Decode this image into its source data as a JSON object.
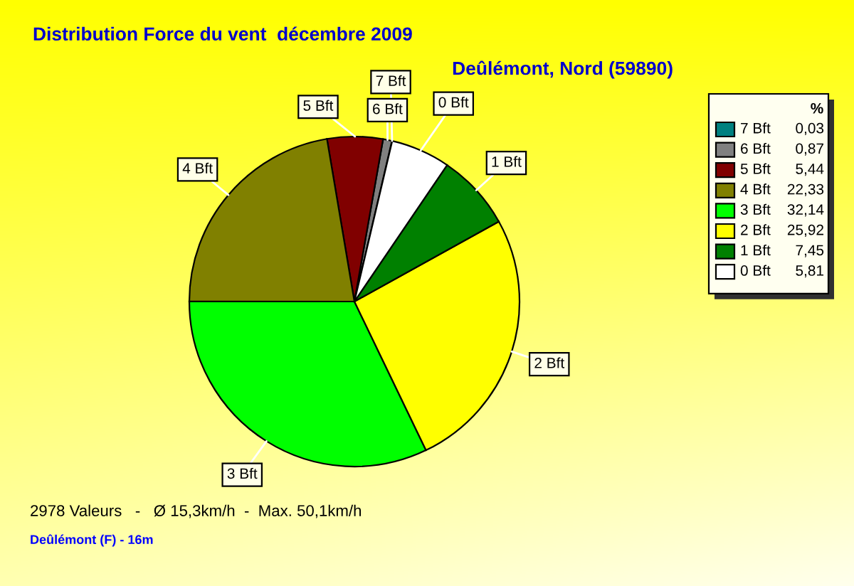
{
  "chart_data": {
    "type": "pie",
    "title": "Distribution Force du vent  décembre 2009",
    "subtitle": "Deûlémont, Nord (59890)",
    "categories": [
      "7 Bft",
      "6 Bft",
      "5 Bft",
      "4 Bft",
      "3 Bft",
      "2 Bft",
      "1 Bft",
      "0 Bft"
    ],
    "values": [
      0.03,
      0.87,
      5.44,
      22.33,
      32.14,
      25.92,
      7.45,
      5.81
    ],
    "value_labels": [
      "0,03",
      "0,87",
      "5,44",
      "22,33",
      "32,14",
      "25,92",
      "7,45",
      "5,81"
    ],
    "colors": [
      "#008080",
      "#808080",
      "#800000",
      "#808000",
      "#00ff00",
      "#ffff00",
      "#008000",
      "#ffffff"
    ],
    "legend": "top right",
    "legend_title": "%",
    "annotations": [
      "2978 Valeurs   -   Ø 15,3km/h  -  Max. 50,1km/h",
      "Deûlémont (F) - 16m"
    ]
  }
}
